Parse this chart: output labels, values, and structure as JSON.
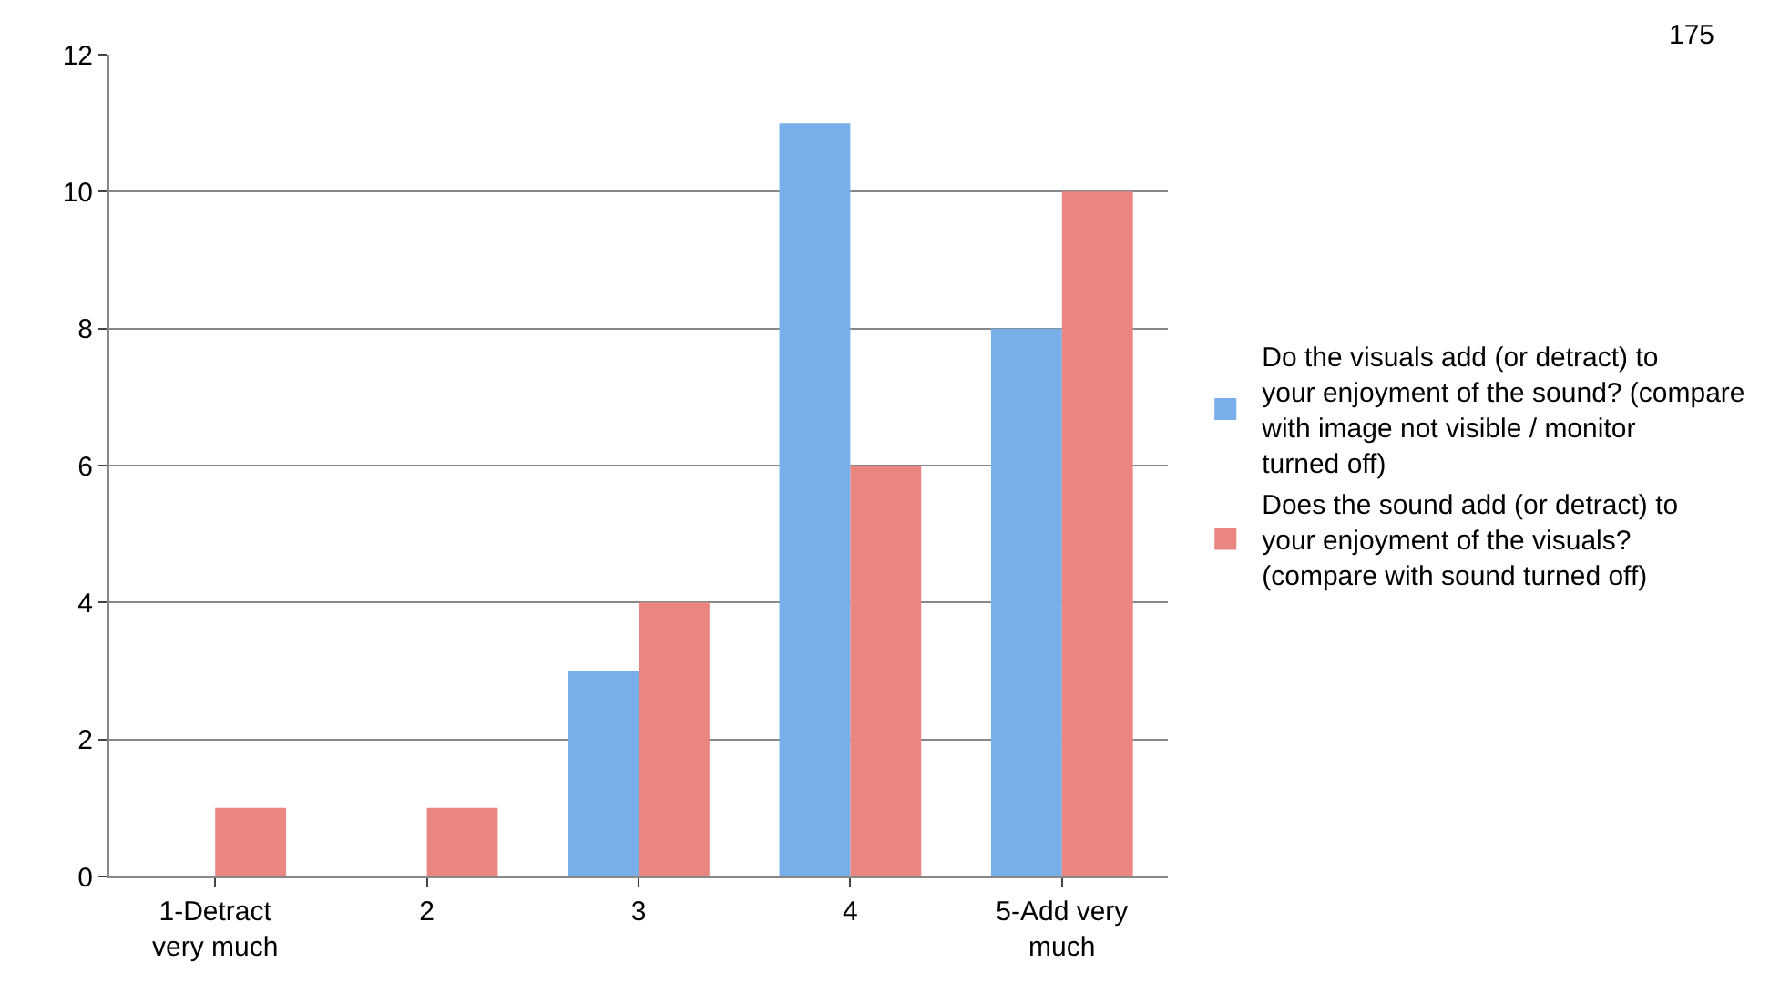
{
  "chart_data": {
    "type": "bar",
    "categories": [
      "1-Detract very much",
      "2",
      "3",
      "4",
      "5-Add very much"
    ],
    "series": [
      {
        "name": "Do the visuals add (or detract) to your enjoyment of the sound? (compare with image not visible / monitor turned off)",
        "color": "#78aeea",
        "values": [
          0,
          0,
          3,
          11,
          8
        ]
      },
      {
        "name": "Does the sound add (or detract) to your enjoyment of the visuals? (compare with sound turned off)",
        "color": "#ea8682",
        "values": [
          1,
          1,
          4,
          6,
          10
        ]
      }
    ],
    "ylim": [
      0,
      12
    ],
    "yticks": [
      0,
      2,
      4,
      6,
      8,
      10,
      12
    ],
    "grid": "y",
    "legend": "right",
    "annotations": [
      "175"
    ]
  }
}
